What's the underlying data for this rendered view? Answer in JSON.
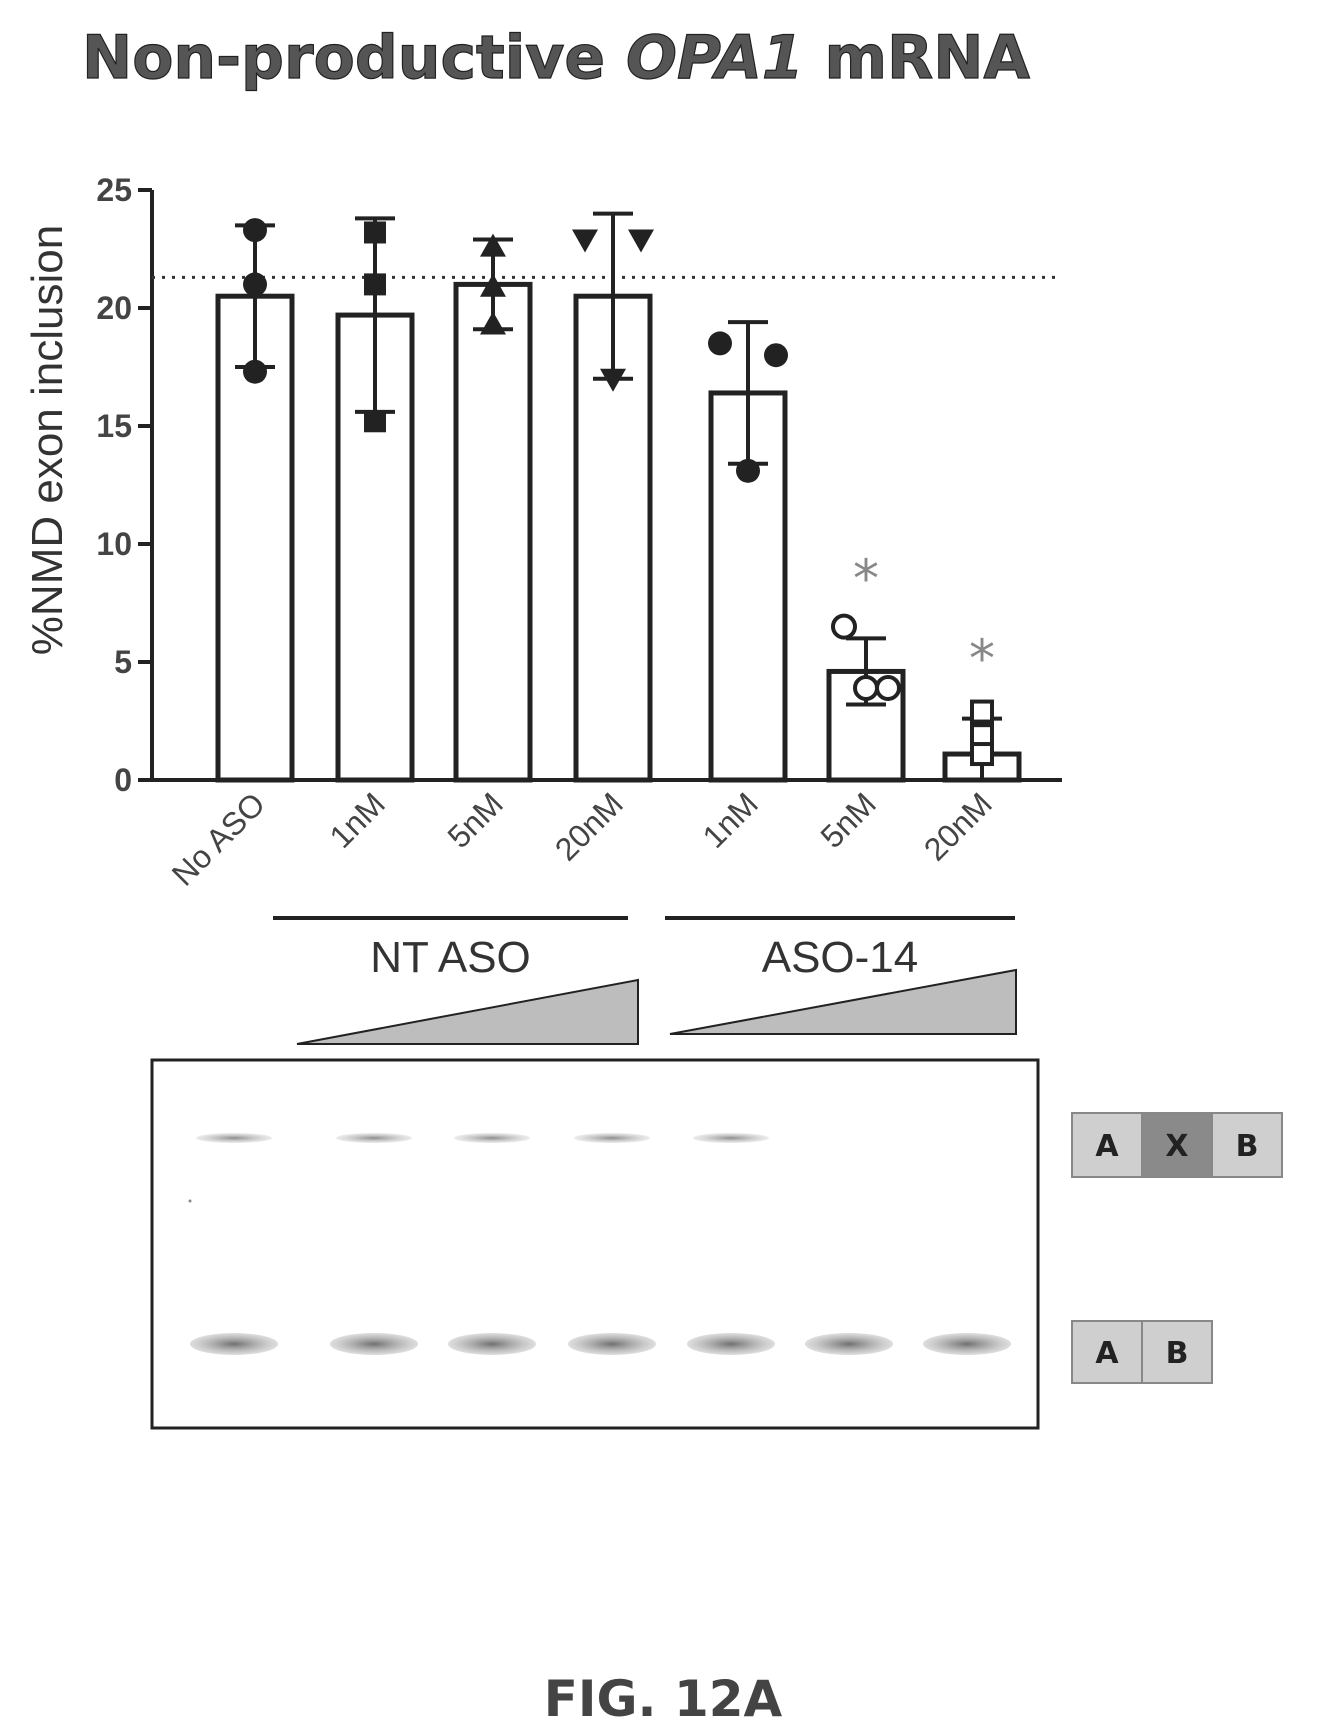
{
  "title": {
    "prefix": "Non-productive ",
    "gene": "OPA1",
    "suffix": " mRNA"
  },
  "figure_label": "FIG. 12A",
  "chart_data": {
    "type": "bar",
    "title": "Non-productive OPA1 mRNA",
    "ylabel": "%NMD exon inclusion",
    "xlabel": "",
    "ylim": [
      0,
      25
    ],
    "yticks": [
      0,
      5,
      10,
      15,
      20,
      25
    ],
    "reference_line": 21.3,
    "categories": [
      "No ASO",
      "1nM",
      "5nM",
      "20nM",
      "1nM",
      "5nM",
      "20nM"
    ],
    "groups": [
      {
        "label": "NT ASO",
        "members": [
          1,
          2,
          3
        ]
      },
      {
        "label": "ASO-14",
        "members": [
          4,
          5,
          6
        ]
      }
    ],
    "values": [
      20.5,
      19.7,
      21.0,
      20.5,
      16.4,
      4.6,
      1.1
    ],
    "error": [
      3.0,
      4.1,
      1.9,
      3.5,
      3.0,
      1.4,
      1.5
    ],
    "points": [
      [
        23.3,
        21.0,
        17.3
      ],
      [
        23.2,
        21.0,
        15.2
      ],
      [
        22.6,
        20.9,
        19.3
      ],
      [
        22.9,
        22.9,
        17.0
      ],
      [
        18.5,
        18.0,
        13.1
      ],
      [
        6.5,
        3.9,
        3.9
      ],
      [
        2.9,
        1.9,
        1.1
      ]
    ],
    "markers": [
      "circle",
      "square",
      "triangle-up",
      "triangle-down",
      "circle",
      "circle-open",
      "square-open"
    ],
    "significance": [
      "",
      "",
      "",
      "",
      "",
      "*",
      "*"
    ]
  },
  "gel": {
    "upper_band_lanes": [
      1,
      2,
      3,
      4,
      5
    ],
    "lower_band_lanes": [
      1,
      2,
      3,
      4,
      5,
      6,
      7
    ],
    "upper_legend": {
      "exons": [
        "A",
        "X",
        "B"
      ],
      "colors": [
        "#cfcfcf",
        "#8a8a8a",
        "#cfcfcf"
      ]
    },
    "lower_legend": {
      "exons": [
        "A",
        "B"
      ],
      "colors": [
        "#cfcfcf",
        "#cfcfcf"
      ]
    }
  }
}
